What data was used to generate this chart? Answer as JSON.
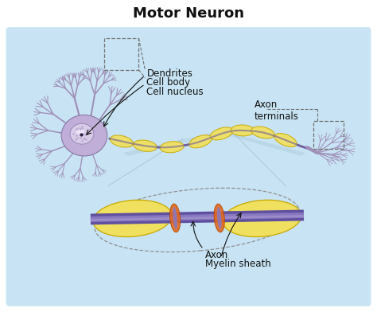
{
  "title": "Motor Neuron",
  "title_fontsize": 13,
  "title_fontweight": "bold",
  "bg_color": "#ffffff",
  "panel_color": "#c8e4f4",
  "labels": {
    "dendrites": "Dendrites",
    "cell_body": "Cell body",
    "cell_nucleus": "Cell nucleus",
    "axon_terminals": "Axon\nterminals",
    "axon": "Axon",
    "myelin_sheath": "Myelin sheath"
  },
  "label_color": "#111111",
  "label_fontsize": 8.5,
  "dendrite_color": "#a090b8",
  "cell_body_color": "#c0aed8",
  "nucleus_color": "#d8cce8",
  "myelin_color": "#f0e060",
  "myelin_edge_color": "#c8a800",
  "axon_color": "#7060a0",
  "axon_highlight_color": "#9080c0",
  "node_color": "#e06820",
  "dashed_box_color": "#888888",
  "shadow_color": "#a8c8e0",
  "zoom_line_color": "#a0b8c8"
}
